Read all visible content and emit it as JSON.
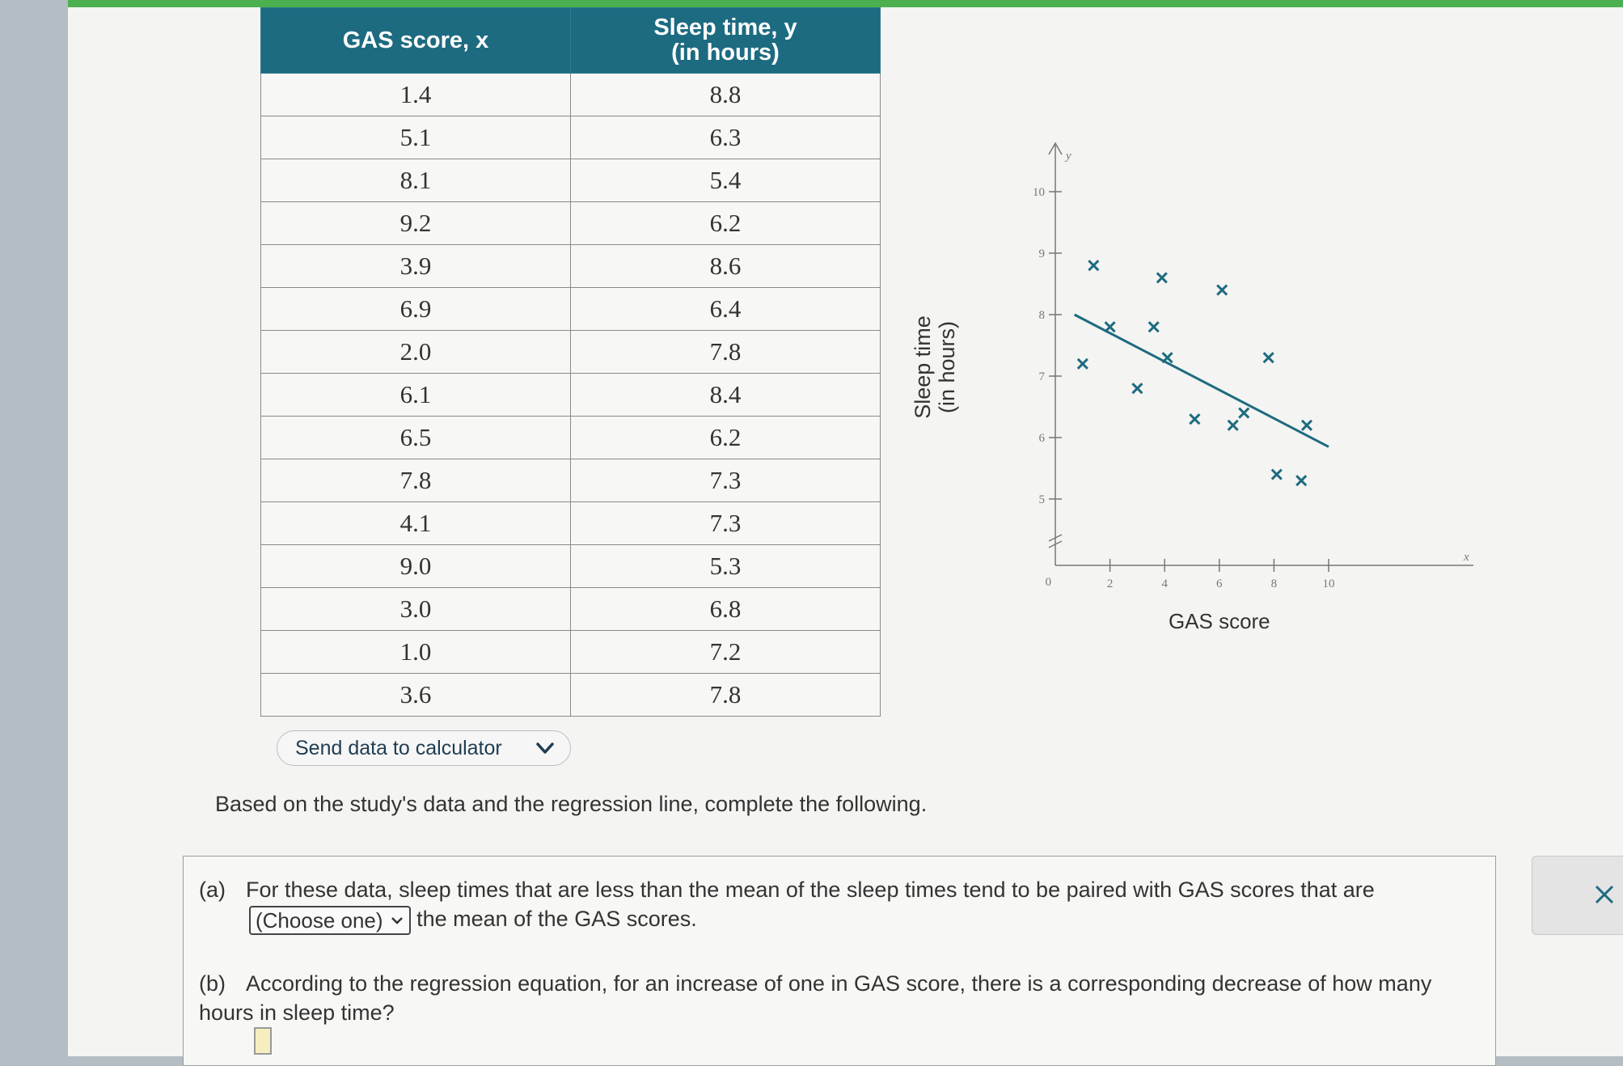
{
  "table": {
    "col_x": "GAS score, x",
    "col_y_line1": "Sleep time, y",
    "col_y_line2": "(in hours)",
    "rows": [
      [
        "1.4",
        "8.8"
      ],
      [
        "5.1",
        "6.3"
      ],
      [
        "8.1",
        "5.4"
      ],
      [
        "9.2",
        "6.2"
      ],
      [
        "3.9",
        "8.6"
      ],
      [
        "6.9",
        "6.4"
      ],
      [
        "2.0",
        "7.8"
      ],
      [
        "6.1",
        "8.4"
      ],
      [
        "6.5",
        "6.2"
      ],
      [
        "7.8",
        "7.3"
      ],
      [
        "4.1",
        "7.3"
      ],
      [
        "9.0",
        "5.3"
      ],
      [
        "3.0",
        "6.8"
      ],
      [
        "1.0",
        "7.2"
      ],
      [
        "3.6",
        "7.8"
      ]
    ]
  },
  "send_button": "Send data to calculator",
  "chart_data": {
    "type": "scatter",
    "xlabel": "GAS score",
    "ylabel_line1": "Sleep time",
    "ylabel_line2": "(in hours)",
    "x_axis_letter": "x",
    "y_axis_letter": "y",
    "origin_label": "0",
    "xlim": [
      0,
      11
    ],
    "ylim": [
      4,
      11
    ],
    "x_ticks": [
      2,
      4,
      6,
      8,
      10
    ],
    "y_ticks": [
      5,
      6,
      7,
      8,
      9,
      10
    ],
    "y_axis_break": true,
    "points": [
      [
        1.4,
        8.8
      ],
      [
        5.1,
        6.3
      ],
      [
        8.1,
        5.4
      ],
      [
        9.2,
        6.2
      ],
      [
        3.9,
        8.6
      ],
      [
        6.9,
        6.4
      ],
      [
        2.0,
        7.8
      ],
      [
        6.1,
        8.4
      ],
      [
        6.5,
        6.2
      ],
      [
        7.8,
        7.3
      ],
      [
        4.1,
        7.3
      ],
      [
        9.0,
        5.3
      ],
      [
        3.0,
        6.8
      ],
      [
        1.0,
        7.2
      ],
      [
        3.6,
        7.8
      ]
    ],
    "regression_line": {
      "x_start": 0.7,
      "y_start": 8.0,
      "x_end": 10.0,
      "y_end": 5.85
    },
    "color": "#1d6b80"
  },
  "intro_text": "Based on the study's data and the regression line, complete the following.",
  "question_a": {
    "label": "(a)",
    "text_before": "For these data, sleep times that are less than the mean of the sleep times tend to be paired with GAS scores that are",
    "select_value": "(Choose one)",
    "text_after": "the mean of the GAS scores."
  },
  "question_b": {
    "label": "(b)",
    "text": "According to the regression equation, for an increase of one in GAS score, there is a corresponding decrease of how many hours in sleep time?"
  }
}
